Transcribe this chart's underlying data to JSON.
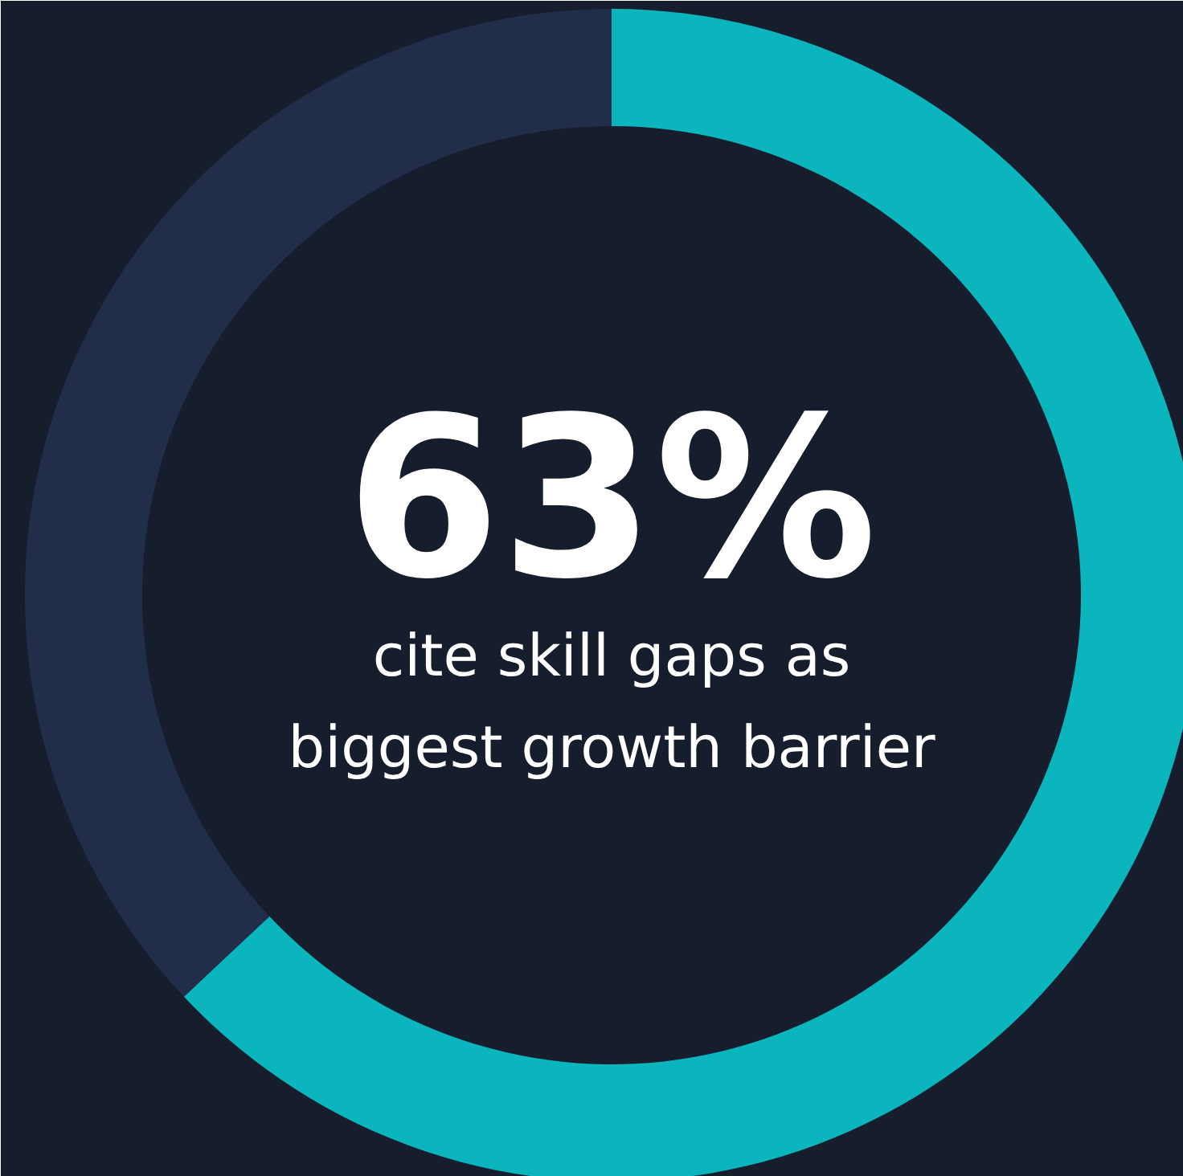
{
  "chart_data": {
    "type": "donut",
    "categories": [
      null,
      null
    ],
    "values": [
      63,
      37
    ],
    "colors": [
      "#0bb5bd",
      "#222d4a"
    ],
    "value_labels": [
      "63%",
      null
    ],
    "annotations": [
      "cite skill gaps as\nbiggest growth barrier"
    ]
  }
}
